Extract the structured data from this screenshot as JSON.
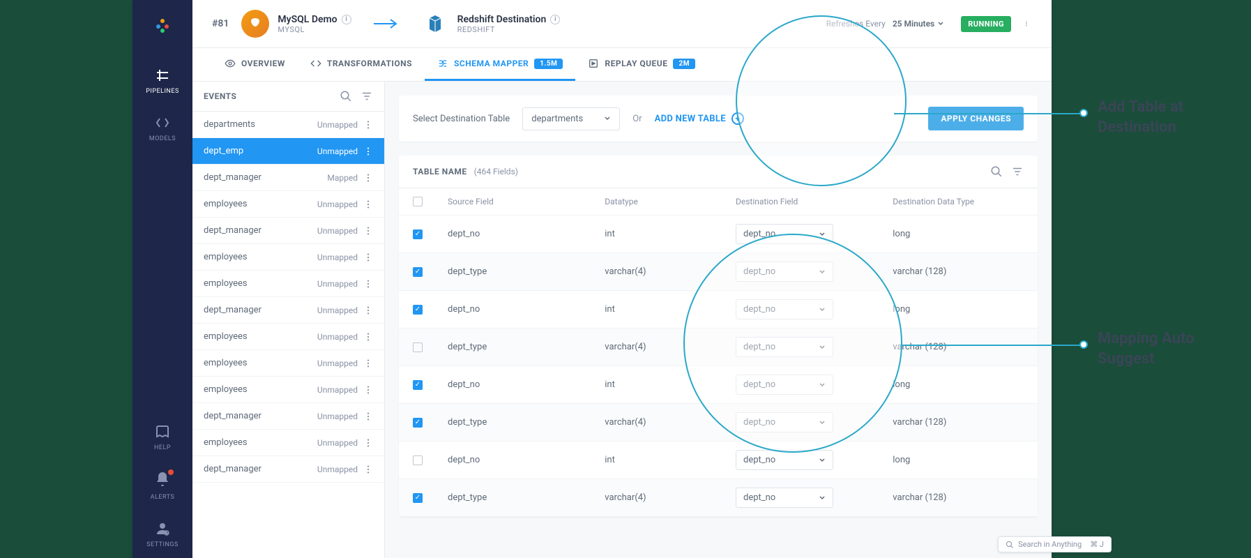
{
  "nav": {
    "items": [
      {
        "label": "PIPELINES"
      },
      {
        "label": "MODELS"
      },
      {
        "label": "HELP"
      },
      {
        "label": "ALERTS"
      },
      {
        "label": "SETTINGS"
      }
    ]
  },
  "header": {
    "pipeline_id": "#81",
    "source": {
      "title": "MySQL Demo",
      "subtitle": "MYSQL"
    },
    "destination": {
      "title": "Redshift Destination",
      "subtitle": "REDSHIFT"
    },
    "refresh_label": "Refreshes Every",
    "refresh_value": "25 Minutes",
    "status": "RUNNING"
  },
  "tabs": [
    {
      "label": "OVERVIEW"
    },
    {
      "label": "TRANSFORMATIONS"
    },
    {
      "label": "SCHEMA MAPPER",
      "badge": "1.5M"
    },
    {
      "label": "REPLAY QUEUE",
      "badge": "2M"
    }
  ],
  "events": {
    "title": "EVENTS",
    "items": [
      {
        "name": "departments",
        "status": "Unmapped"
      },
      {
        "name": "dept_emp",
        "status": "Unmapped",
        "active": true
      },
      {
        "name": "dept_manager",
        "status": "Mapped"
      },
      {
        "name": "employees",
        "status": "Unmapped"
      },
      {
        "name": "dept_manager",
        "status": "Unmapped"
      },
      {
        "name": "employees",
        "status": "Unmapped"
      },
      {
        "name": "employees",
        "status": "Unmapped"
      },
      {
        "name": "dept_manager",
        "status": "Unmapped"
      },
      {
        "name": "employees",
        "status": "Unmapped"
      },
      {
        "name": "employees",
        "status": "Unmapped"
      },
      {
        "name": "employees",
        "status": "Unmapped"
      },
      {
        "name": "dept_manager",
        "status": "Unmapped"
      },
      {
        "name": "employees",
        "status": "Unmapped"
      },
      {
        "name": "dept_manager",
        "status": "Unmapped"
      }
    ]
  },
  "destBar": {
    "label": "Select Destination Table",
    "selected": "departments",
    "or": "Or",
    "addTable": "ADD NEW TABLE",
    "applyBtn": "APPLY CHANGES"
  },
  "tableCard": {
    "title": "TABLE NAME",
    "fieldCount": "(464 Fields)",
    "columns": {
      "source": "Source Field",
      "datatype": "Datatype",
      "destField": "Destination Field",
      "destType": "Destination Data Type"
    },
    "rows": [
      {
        "checked": true,
        "src": "dept_no",
        "type": "int",
        "dest": "dept_no",
        "destType": "long"
      },
      {
        "checked": true,
        "src": "dept_type",
        "type": "varchar(4)",
        "dest": "dept_no",
        "destType": "varchar (128)"
      },
      {
        "checked": true,
        "src": "dept_no",
        "type": "int",
        "dest": "dept_no",
        "destType": "long"
      },
      {
        "checked": false,
        "src": "dept_type",
        "type": "varchar(4)",
        "dest": "dept_no",
        "destType": "varchar (128)"
      },
      {
        "checked": true,
        "src": "dept_no",
        "type": "int",
        "dest": "dept_no",
        "destType": "long"
      },
      {
        "checked": true,
        "src": "dept_type",
        "type": "varchar(4)",
        "dest": "dept_no",
        "destType": "varchar (128)"
      },
      {
        "checked": false,
        "src": "dept_no",
        "type": "int",
        "dest": "dept_no",
        "destType": "long"
      },
      {
        "checked": true,
        "src": "dept_type",
        "type": "varchar(4)",
        "dest": "dept_no",
        "destType": "varchar (128)"
      }
    ]
  },
  "annotations": {
    "addTable": "Add Table at Destination",
    "autoSuggest": "Mapping Auto Suggest"
  },
  "searchFooter": {
    "placeholder": "Search in Anything",
    "shortcut": "⌘ J"
  },
  "colors": {
    "accent": "#2196f3",
    "success": "#27ae60",
    "navBg": "#1e2749",
    "callout": "#2aa8c9"
  }
}
